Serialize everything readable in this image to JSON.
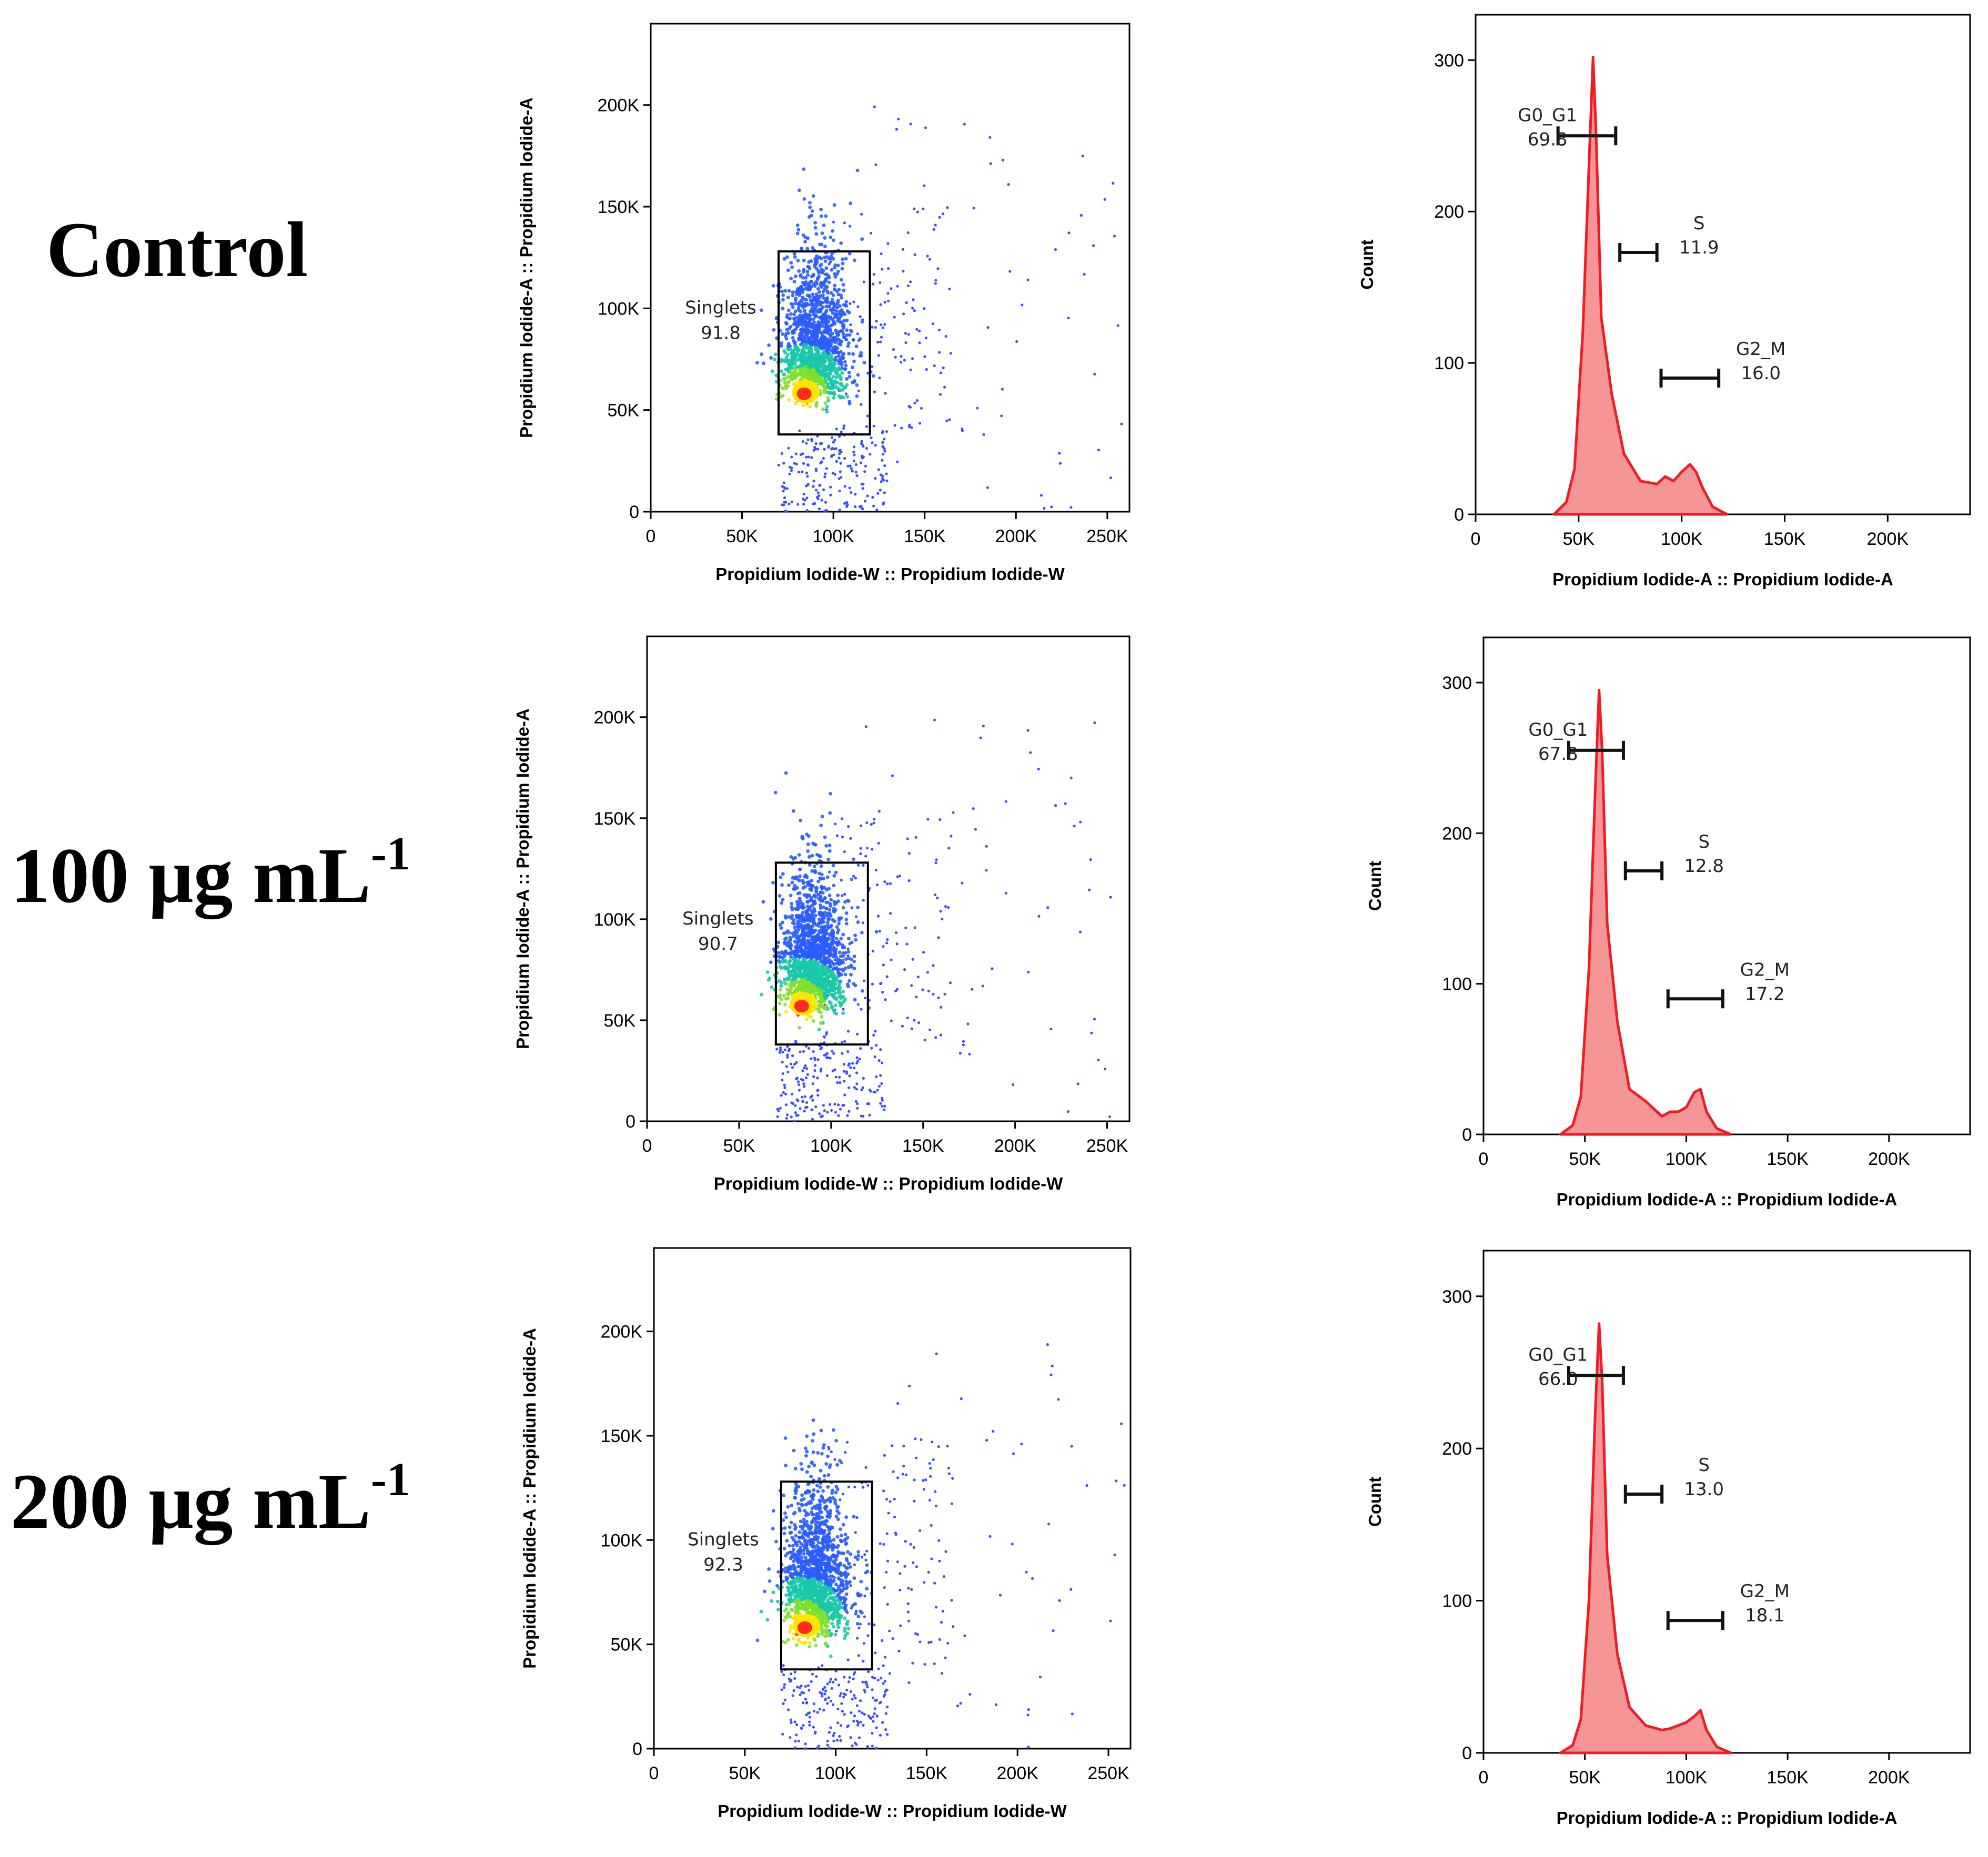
{
  "rows": [
    {
      "condition": "Control",
      "sup": "",
      "scatter": {
        "type": "scatter",
        "xlabel": "Propidium Iodide-W :: Propidium Iodide-W",
        "ylabel": "Propidium Iodide-A :: Propidium Iodide-A",
        "xticks": [
          "0",
          "50K",
          "100K",
          "150K",
          "200K",
          "250K"
        ],
        "yticks": [
          "0",
          "50K",
          "100K",
          "150K",
          "200K"
        ],
        "xlim": [
          0,
          262144
        ],
        "ylim": [
          0,
          240000
        ],
        "gate": {
          "name": "Singlets",
          "value": "91.8",
          "x": [
            70000,
            120000
          ],
          "y": [
            38000,
            128000
          ]
        },
        "density_center": [
          83000,
          57000
        ]
      },
      "histogram": {
        "type": "area",
        "xlabel": "Propidium Iodide-A :: Propidium Iodide-A",
        "ylabel": "Count",
        "xticks": [
          "0",
          "50K",
          "100K",
          "150K",
          "200K"
        ],
        "yticks": [
          "0",
          "100",
          "200",
          "300"
        ],
        "xlim": [
          0,
          240000
        ],
        "ylim": [
          0,
          330
        ],
        "x": [
          38000,
          44000,
          48000,
          52000,
          55000,
          57000,
          58500,
          61000,
          66000,
          72000,
          80000,
          88000,
          92000,
          96000,
          100000,
          104000,
          107000,
          110000,
          115000,
          122000
        ],
        "y": [
          0,
          8,
          30,
          120,
          230,
          302,
          250,
          130,
          80,
          40,
          22,
          20,
          25,
          22,
          28,
          33,
          28,
          18,
          5,
          0
        ],
        "gates": [
          {
            "name": "G0_G1",
            "value": "69.8",
            "range": [
              40000,
              68000
            ],
            "level": 250
          },
          {
            "name": "S",
            "value": "11.9",
            "range": [
              70000,
              88000
            ],
            "level": 173
          },
          {
            "name": "G2_M",
            "value": "16.0",
            "range": [
              90000,
              118000
            ],
            "level": 90
          }
        ]
      }
    },
    {
      "condition": "100 μg mL",
      "sup": "-1",
      "scatter": {
        "type": "scatter",
        "xlabel": "Propidium Iodide-W :: Propidium Iodide-W",
        "ylabel": "Propidium Iodide-A :: Propidium Iodide-A",
        "xticks": [
          "0",
          "50K",
          "100K",
          "150K",
          "200K",
          "250K"
        ],
        "yticks": [
          "0",
          "50K",
          "100K",
          "150K",
          "200K"
        ],
        "xlim": [
          0,
          262144
        ],
        "ylim": [
          0,
          240000
        ],
        "gate": {
          "name": "Singlets",
          "value": "90.7",
          "x": [
            70000,
            120000
          ],
          "y": [
            38000,
            128000
          ]
        },
        "density_center": [
          83000,
          56000
        ]
      },
      "histogram": {
        "type": "area",
        "xlabel": "Propidium Iodide-A :: Propidium Iodide-A",
        "ylabel": "Count",
        "xticks": [
          "0",
          "50K",
          "100K",
          "150K",
          "200K"
        ],
        "yticks": [
          "0",
          "100",
          "200",
          "300"
        ],
        "xlim": [
          0,
          240000
        ],
        "ylim": [
          0,
          330
        ],
        "x": [
          38000,
          44000,
          48000,
          52000,
          55000,
          57000,
          58500,
          61000,
          66000,
          72000,
          80000,
          88000,
          92000,
          96000,
          100000,
          104000,
          107000,
          110000,
          115000,
          122000
        ],
        "y": [
          0,
          6,
          25,
          110,
          225,
          295,
          255,
          140,
          75,
          30,
          22,
          12,
          15,
          15,
          18,
          28,
          30,
          15,
          4,
          0
        ],
        "gates": [
          {
            "name": "G0_G1",
            "value": "67.8",
            "range": [
              42000,
              69000
            ],
            "level": 255
          },
          {
            "name": "S",
            "value": "12.8",
            "range": [
              70000,
              88000
            ],
            "level": 175
          },
          {
            "name": "G2_M",
            "value": "17.2",
            "range": [
              91000,
              118000
            ],
            "level": 90
          }
        ]
      }
    },
    {
      "condition": "200 μg mL",
      "sup": "-1",
      "scatter": {
        "type": "scatter",
        "xlabel": "Propidium Iodide-W :: Propidium Iodide-W",
        "ylabel": "Propidium Iodide-A :: Propidium Iodide-A",
        "xticks": [
          "0",
          "50K",
          "100K",
          "150K",
          "200K",
          "250K"
        ],
        "yticks": [
          "0",
          "50K",
          "100K",
          "150K",
          "200K"
        ],
        "xlim": [
          0,
          262144
        ],
        "ylim": [
          0,
          240000
        ],
        "gate": {
          "name": "Singlets",
          "value": "92.3",
          "x": [
            70000,
            120000
          ],
          "y": [
            38000,
            128000
          ]
        },
        "density_center": [
          82000,
          57000
        ]
      },
      "histogram": {
        "type": "area",
        "xlabel": "Propidium Iodide-A :: Propidium Iodide-A",
        "ylabel": "Count",
        "xticks": [
          "0",
          "50K",
          "100K",
          "150K",
          "200K"
        ],
        "yticks": [
          "0",
          "100",
          "200",
          "300"
        ],
        "xlim": [
          0,
          240000
        ],
        "ylim": [
          0,
          330
        ],
        "x": [
          38000,
          44000,
          48000,
          52000,
          55000,
          57000,
          58500,
          61000,
          66000,
          72000,
          80000,
          88000,
          92000,
          96000,
          100000,
          104000,
          107000,
          110000,
          115000,
          122000
        ],
        "y": [
          0,
          5,
          22,
          100,
          220,
          282,
          245,
          130,
          65,
          30,
          18,
          15,
          16,
          18,
          20,
          24,
          28,
          15,
          4,
          0
        ],
        "gates": [
          {
            "name": "G0_G1",
            "value": "66.0",
            "range": [
              42000,
              69000
            ],
            "level": 248
          },
          {
            "name": "S",
            "value": "13.0",
            "range": [
              70000,
              88000
            ],
            "level": 170
          },
          {
            "name": "G2_M",
            "value": "18.1",
            "range": [
              91000,
              118000
            ],
            "level": 87
          }
        ]
      }
    }
  ],
  "colors": {
    "histogram_line": "#ee1c24",
    "histogram_fill": "#f59595",
    "dots": "#3a4dff",
    "density": [
      "#2a5cff",
      "#18c8a8",
      "#7ee02c",
      "#ffe500",
      "#ff2a1a"
    ]
  },
  "chart_data": [
    {
      "panel": "Control scatter",
      "type": "scatter",
      "xlabel": "Propidium Iodide-W :: Propidium Iodide-W",
      "ylabel": "Propidium Iodide-A :: Propidium Iodide-A",
      "gate": "Singlets",
      "gate_value": 91.8,
      "xlim": [
        0,
        262144
      ],
      "ylim": [
        0,
        240000
      ]
    },
    {
      "panel": "Control histogram",
      "type": "area",
      "xlabel": "Propidium Iodide-A :: Propidium Iodide-A",
      "ylabel": "Count",
      "series": [
        {
          "name": "G0_G1",
          "values": [
            69.8
          ]
        },
        {
          "name": "S",
          "values": [
            11.9
          ]
        },
        {
          "name": "G2_M",
          "values": [
            16.0
          ]
        }
      ],
      "xlim": [
        0,
        240000
      ],
      "ylim": [
        0,
        330
      ]
    },
    {
      "panel": "100 μg mL-1 scatter",
      "type": "scatter",
      "gate": "Singlets",
      "gate_value": 90.7
    },
    {
      "panel": "100 μg mL-1 histogram",
      "type": "area",
      "series": [
        {
          "name": "G0_G1",
          "values": [
            67.8
          ]
        },
        {
          "name": "S",
          "values": [
            12.8
          ]
        },
        {
          "name": "G2_M",
          "values": [
            17.2
          ]
        }
      ]
    },
    {
      "panel": "200 μg mL-1 scatter",
      "type": "scatter",
      "gate": "Singlets",
      "gate_value": 92.3
    },
    {
      "panel": "200 μg mL-1 histogram",
      "type": "area",
      "series": [
        {
          "name": "G0_G1",
          "values": [
            66.0
          ]
        },
        {
          "name": "S",
          "values": [
            13.0
          ]
        },
        {
          "name": "G2_M",
          "values": [
            18.1
          ]
        }
      ]
    }
  ]
}
